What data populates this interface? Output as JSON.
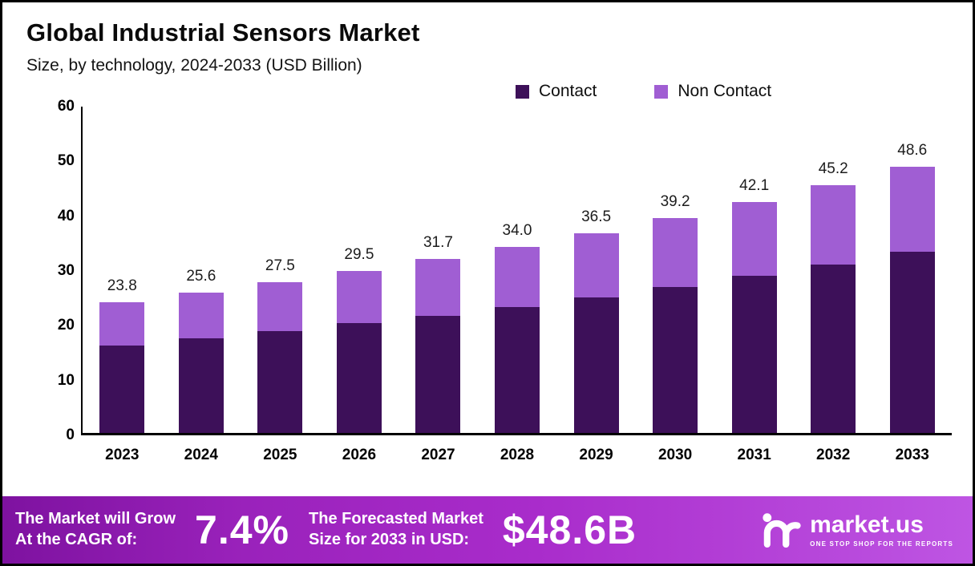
{
  "header": {
    "title": "Global Industrial Sensors Market",
    "subtitle": "Size, by technology, 2024-2033 (USD Billion)"
  },
  "legend": [
    {
      "label": "Contact",
      "color": "#3d1059"
    },
    {
      "label": "Non Contact",
      "color": "#a05ed3"
    }
  ],
  "chart_data": {
    "type": "bar",
    "stacked": true,
    "title": "Global Industrial Sensors Market",
    "subtitle": "Size, by technology, 2024-2033 (USD Billion)",
    "unit": "USD Billion",
    "categories": [
      "2023",
      "2024",
      "2025",
      "2026",
      "2027",
      "2028",
      "2029",
      "2030",
      "2031",
      "2032",
      "2033"
    ],
    "series": [
      {
        "name": "Contact",
        "color": "#3d1059",
        "values": [
          16.0,
          17.3,
          18.6,
          20.0,
          21.3,
          23.0,
          24.8,
          26.6,
          28.7,
          30.7,
          33.1
        ]
      },
      {
        "name": "Non Contact",
        "color": "#a05ed3",
        "values": [
          7.8,
          8.3,
          8.9,
          9.5,
          10.4,
          11.0,
          11.7,
          12.6,
          13.4,
          14.5,
          15.5
        ]
      }
    ],
    "totals": [
      23.8,
      25.6,
      27.5,
      29.5,
      31.7,
      34.0,
      36.5,
      39.2,
      42.1,
      45.2,
      48.6
    ],
    "totals_labels": [
      "23.8",
      "25.6",
      "27.5",
      "29.5",
      "31.7",
      "34.0",
      "36.5",
      "39.2",
      "42.1",
      "45.2",
      "48.6"
    ],
    "y_ticks": [
      0,
      10,
      20,
      30,
      40,
      50,
      60
    ],
    "ylim": [
      0,
      60
    ],
    "grid": false,
    "legend_position": "top-right"
  },
  "footer": {
    "cagr_label_line1": "The Market will Grow",
    "cagr_label_line2": "At the CAGR of:",
    "cagr_value": "7.4%",
    "forecast_label_line1": "The Forecasted Market",
    "forecast_label_line2": "Size for 2033 in USD:",
    "forecast_value": "$48.6B",
    "brand_name": "market.us",
    "brand_tagline": "ONE STOP SHOP FOR THE REPORTS"
  }
}
